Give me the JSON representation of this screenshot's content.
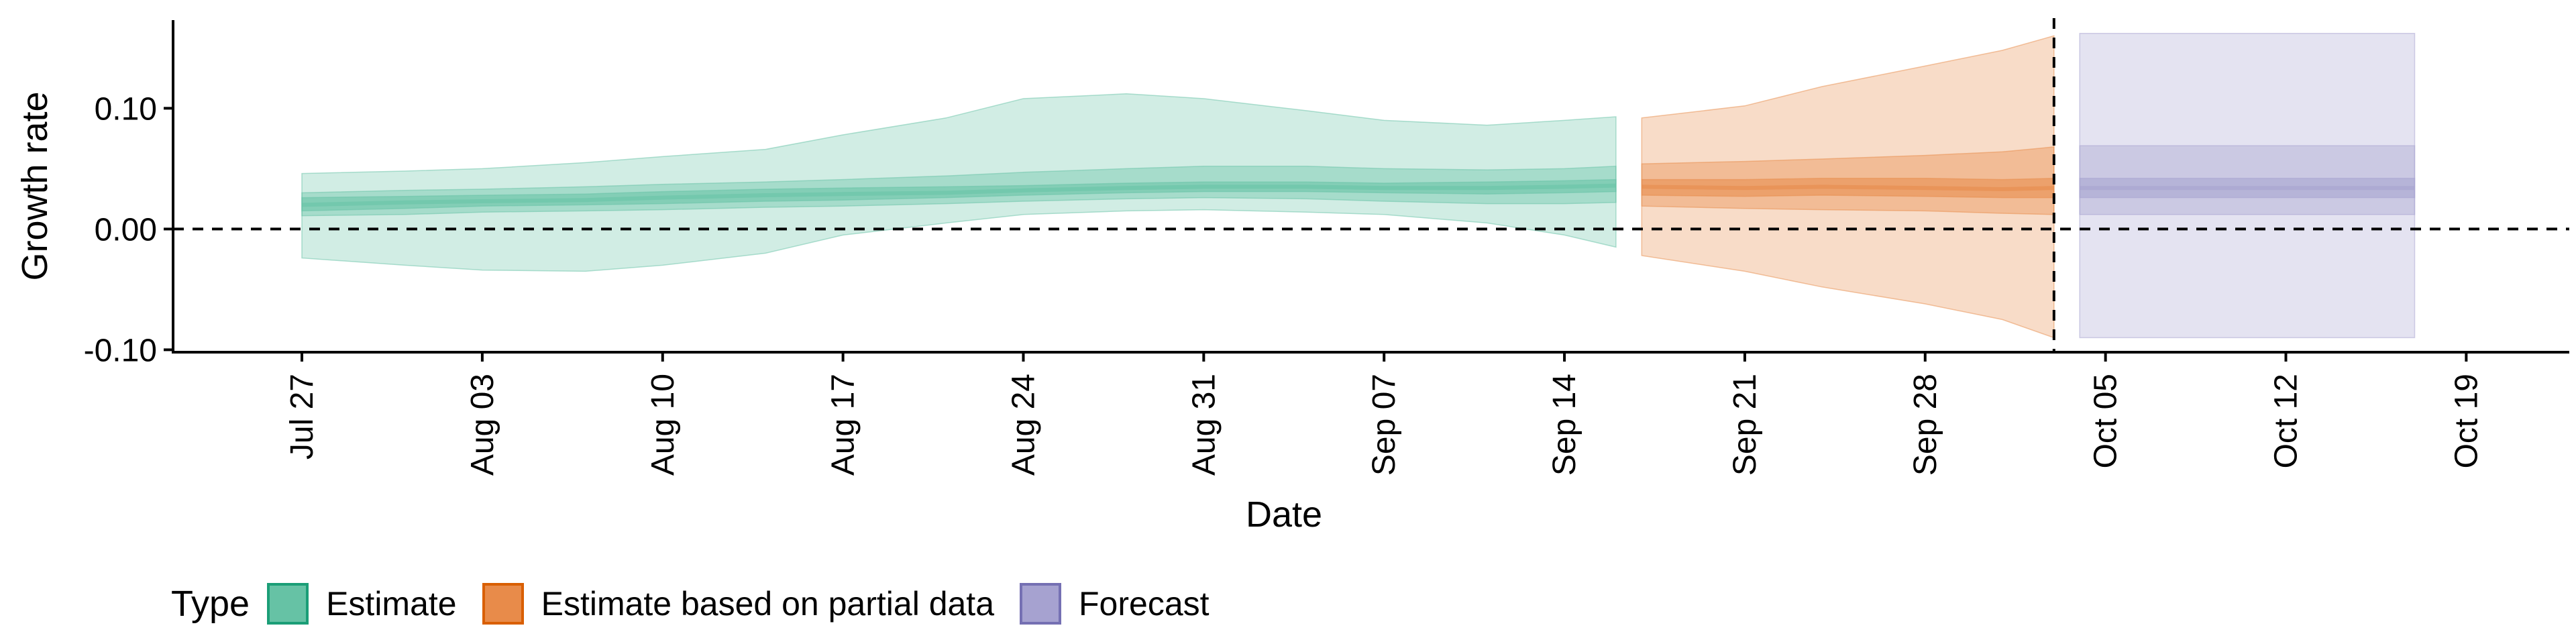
{
  "chart_data": {
    "type": "area",
    "title": "",
    "xlabel": "Date",
    "ylabel": "Growth rate",
    "x_range": [
      "2020-07-22",
      "2020-10-23"
    ],
    "ylim": [
      -0.102,
      0.173
    ],
    "y_ticks": [
      -0.1,
      0.0,
      0.1
    ],
    "y_tick_labels": [
      "-0.10",
      "0.00",
      "0.10"
    ],
    "x_ticks": [
      "2020-07-27",
      "2020-08-03",
      "2020-08-10",
      "2020-08-17",
      "2020-08-24",
      "2020-08-31",
      "2020-09-07",
      "2020-09-14",
      "2020-09-21",
      "2020-09-28",
      "2020-10-05",
      "2020-10-12",
      "2020-10-19"
    ],
    "x_tick_labels": [
      "Jul 27",
      "Aug 03",
      "Aug 10",
      "Aug 17",
      "Aug 24",
      "Aug 31",
      "Sep 07",
      "Sep 14",
      "Sep 21",
      "Sep 28",
      "Oct 05",
      "Oct 12",
      "Oct 19"
    ],
    "reference_lines": {
      "horizontal_y": 0.0,
      "vertical_date": "2020-10-03"
    },
    "grid": false,
    "legend": {
      "title": "Type",
      "position": "bottom-left"
    },
    "series": [
      {
        "name": "Estimate",
        "color": "#1b9e77",
        "fill_color": "#66c2a5",
        "dates": [
          "2020-07-27",
          "2020-07-31",
          "2020-08-03",
          "2020-08-07",
          "2020-08-10",
          "2020-08-14",
          "2020-08-17",
          "2020-08-21",
          "2020-08-24",
          "2020-08-28",
          "2020-08-31",
          "2020-09-04",
          "2020-09-07",
          "2020-09-11",
          "2020-09-14",
          "2020-09-16"
        ],
        "median": [
          0.02,
          0.022,
          0.023,
          0.024,
          0.026,
          0.028,
          0.029,
          0.03,
          0.032,
          0.034,
          0.035,
          0.035,
          0.034,
          0.034,
          0.035,
          0.036
        ],
        "lower_20": [
          0.015,
          0.017,
          0.019,
          0.02,
          0.021,
          0.023,
          0.024,
          0.026,
          0.028,
          0.03,
          0.031,
          0.031,
          0.03,
          0.029,
          0.03,
          0.031
        ],
        "upper_20": [
          0.026,
          0.027,
          0.028,
          0.029,
          0.031,
          0.033,
          0.034,
          0.035,
          0.036,
          0.038,
          0.039,
          0.039,
          0.038,
          0.039,
          0.04,
          0.041
        ],
        "lower_50": [
          0.011,
          0.012,
          0.014,
          0.015,
          0.016,
          0.018,
          0.019,
          0.021,
          0.023,
          0.025,
          0.026,
          0.025,
          0.023,
          0.021,
          0.021,
          0.022
        ],
        "upper_50": [
          0.03,
          0.032,
          0.033,
          0.035,
          0.037,
          0.039,
          0.041,
          0.044,
          0.047,
          0.05,
          0.052,
          0.052,
          0.05,
          0.049,
          0.05,
          0.052
        ],
        "lower_90": [
          -0.024,
          -0.03,
          -0.034,
          -0.035,
          -0.03,
          -0.02,
          -0.005,
          0.005,
          0.012,
          0.015,
          0.016,
          0.014,
          0.012,
          0.005,
          -0.005,
          -0.015
        ],
        "upper_90": [
          0.046,
          0.048,
          0.05,
          0.055,
          0.06,
          0.066,
          0.078,
          0.092,
          0.108,
          0.112,
          0.108,
          0.098,
          0.09,
          0.086,
          0.09,
          0.093
        ]
      },
      {
        "name": "Estimate based on partial data",
        "color": "#d95f02",
        "fill_color": "#e88b4a",
        "dates": [
          "2020-09-17",
          "2020-09-21",
          "2020-09-24",
          "2020-09-28",
          "2020-10-01",
          "2020-10-03"
        ],
        "median": [
          0.035,
          0.034,
          0.035,
          0.034,
          0.033,
          0.034
        ],
        "lower_20": [
          0.028,
          0.027,
          0.028,
          0.027,
          0.026,
          0.026
        ],
        "upper_20": [
          0.041,
          0.041,
          0.042,
          0.042,
          0.041,
          0.042
        ],
        "lower_50": [
          0.019,
          0.017,
          0.016,
          0.015,
          0.013,
          0.012
        ],
        "upper_50": [
          0.054,
          0.056,
          0.058,
          0.061,
          0.064,
          0.068
        ],
        "lower_90": [
          -0.022,
          -0.035,
          -0.048,
          -0.062,
          -0.075,
          -0.09
        ],
        "upper_90": [
          0.092,
          0.102,
          0.118,
          0.135,
          0.148,
          0.16
        ]
      },
      {
        "name": "Forecast",
        "color": "#7570b3",
        "fill_color": "#a6a2d0",
        "dates": [
          "2020-10-04",
          "2020-10-17"
        ],
        "median": [
          0.034,
          0.034
        ],
        "lower_20": [
          0.026,
          0.026
        ],
        "upper_20": [
          0.042,
          0.042
        ],
        "lower_50": [
          0.012,
          0.012
        ],
        "upper_50": [
          0.069,
          0.069
        ],
        "lower_90": [
          -0.09,
          -0.09
        ],
        "upper_90": [
          0.162,
          0.162
        ]
      }
    ]
  }
}
